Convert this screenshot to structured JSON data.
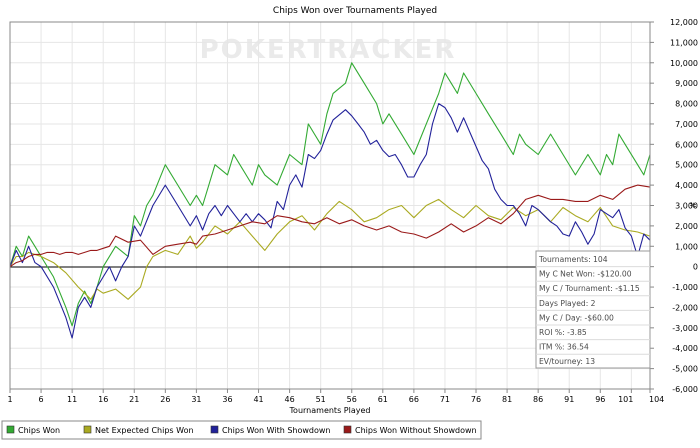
{
  "watermark": "POKERTRACKER",
  "chart_data": {
    "type": "line",
    "title": "Chips Won over Tournaments Played",
    "xlabel": "Tournaments Played",
    "ylabel": "#",
    "xlim": [
      1,
      104
    ],
    "ylim": [
      -6000,
      12000
    ],
    "xticks": [
      1,
      6,
      11,
      16,
      21,
      26,
      31,
      36,
      41,
      46,
      51,
      56,
      61,
      66,
      71,
      76,
      81,
      86,
      91,
      96,
      101,
      104
    ],
    "yticks": [
      -6000,
      -5000,
      -4000,
      -3000,
      -2000,
      -1000,
      0,
      1000,
      2000,
      3000,
      4000,
      5000,
      6000,
      7000,
      8000,
      9000,
      10000,
      11000,
      12000
    ],
    "ytick_labels": [
      "-6,000",
      "-5,000",
      "-4,000",
      "-3,000",
      "-2,000",
      "-1,000",
      "0",
      "1,000",
      "2,000",
      "3,000",
      "4,000",
      "5,000",
      "6,000",
      "7,000",
      "8,000",
      "9,000",
      "10,000",
      "11,000",
      "12,000"
    ],
    "grid": true,
    "legend_position": "bottom",
    "series": [
      {
        "name": "Chips Won",
        "color": "#33aa33",
        "x": [
          1,
          2,
          3,
          4,
          5,
          6,
          8,
          10,
          11,
          12,
          13,
          14,
          15,
          16,
          18,
          20,
          21,
          22,
          23,
          24,
          26,
          28,
          30,
          31,
          32,
          33,
          34,
          36,
          37,
          38,
          39,
          40,
          41,
          42,
          44,
          46,
          48,
          49,
          50,
          51,
          52,
          53,
          55,
          56,
          58,
          60,
          61,
          62,
          64,
          66,
          68,
          70,
          71,
          72,
          73,
          74,
          76,
          78,
          80,
          82,
          83,
          84,
          86,
          88,
          90,
          92,
          94,
          96,
          97,
          98,
          99,
          100,
          102,
          103,
          104
        ],
        "values": [
          0,
          1000,
          500,
          1500,
          1000,
          500,
          -500,
          -2000,
          -2900,
          -1800,
          -1200,
          -1800,
          -1000,
          0,
          1000,
          500,
          2500,
          2000,
          3000,
          3500,
          5000,
          4000,
          3000,
          3500,
          3000,
          4000,
          5000,
          4500,
          5500,
          5000,
          4500,
          4000,
          5000,
          4500,
          4000,
          5500,
          5000,
          7000,
          6500,
          6000,
          7500,
          8500,
          9000,
          10000,
          9000,
          8000,
          7000,
          7500,
          6500,
          5500,
          7000,
          8500,
          9500,
          9000,
          8500,
          9500,
          8500,
          7500,
          6500,
          5500,
          6500,
          6000,
          5500,
          6500,
          5500,
          4500,
          5500,
          4500,
          5500,
          5000,
          6500,
          6000,
          5000,
          4500,
          5500
        ]
      },
      {
        "name": "Net Expected Chips Won",
        "color": "#aaaa22",
        "x": [
          1,
          2,
          3,
          4,
          6,
          8,
          10,
          12,
          13,
          14,
          15,
          16,
          18,
          20,
          21,
          22,
          23,
          24,
          26,
          28,
          30,
          31,
          32,
          34,
          36,
          38,
          40,
          42,
          44,
          46,
          48,
          50,
          52,
          54,
          56,
          58,
          60,
          62,
          64,
          66,
          68,
          70,
          72,
          74,
          76,
          78,
          80,
          82,
          84,
          86,
          88,
          90,
          92,
          94,
          96,
          98,
          100,
          102,
          104
        ],
        "values": [
          0,
          500,
          500,
          700,
          500,
          200,
          -300,
          -1000,
          -1300,
          -1600,
          -1100,
          -1300,
          -1100,
          -1600,
          -1300,
          -1000,
          0,
          500,
          800,
          600,
          1500,
          900,
          1200,
          2000,
          1600,
          2200,
          1500,
          800,
          1600,
          2200,
          2500,
          1800,
          2600,
          3200,
          2800,
          2200,
          2400,
          2800,
          3000,
          2400,
          3000,
          3300,
          2800,
          2400,
          3000,
          2500,
          2300,
          2900,
          2500,
          2800,
          2200,
          2900,
          2500,
          2200,
          2900,
          2000,
          1800,
          1700,
          1500
        ]
      },
      {
        "name": "Chips Won With Showdown",
        "color": "#22229a",
        "x": [
          1,
          2,
          3,
          4,
          5,
          6,
          8,
          10,
          11,
          12,
          13,
          14,
          15,
          16,
          17,
          18,
          19,
          20,
          21,
          22,
          24,
          26,
          28,
          30,
          31,
          32,
          33,
          34,
          35,
          36,
          37,
          38,
          39,
          40,
          41,
          42,
          43,
          44,
          45,
          46,
          47,
          48,
          49,
          50,
          51,
          52,
          53,
          55,
          56,
          57,
          58,
          59,
          60,
          61,
          62,
          63,
          64,
          65,
          66,
          67,
          68,
          69,
          70,
          71,
          72,
          73,
          74,
          75,
          76,
          77,
          78,
          79,
          80,
          81,
          82,
          83,
          84,
          85,
          86,
          87,
          88,
          89,
          90,
          91,
          92,
          93,
          94,
          95,
          96,
          97,
          98,
          99,
          100,
          101,
          102,
          103,
          104
        ],
        "values": [
          0,
          800,
          200,
          1000,
          200,
          0,
          -1000,
          -2500,
          -3500,
          -2000,
          -1500,
          -2000,
          -1000,
          -500,
          0,
          -700,
          0,
          500,
          2000,
          1500,
          3000,
          4000,
          3000,
          2000,
          2500,
          1800,
          2600,
          3000,
          2500,
          3000,
          2600,
          2200,
          2600,
          2200,
          2600,
          2300,
          1900,
          3200,
          2800,
          4000,
          4500,
          3900,
          5500,
          5300,
          5700,
          6500,
          7200,
          7700,
          7400,
          7000,
          6600,
          6000,
          6200,
          5700,
          5400,
          5500,
          5000,
          4400,
          4400,
          5000,
          5500,
          7000,
          8000,
          7800,
          7300,
          6600,
          7300,
          6600,
          5900,
          5200,
          4800,
          3800,
          3300,
          3000,
          3000,
          2600,
          2000,
          3000,
          2800,
          2500,
          2200,
          2000,
          1600,
          1500,
          2200,
          1700,
          1100,
          1600,
          2800,
          2600,
          2400,
          2800,
          1900,
          1500,
          500,
          1600,
          1300
        ]
      },
      {
        "name": "Chips Won Without Showdown",
        "color": "#9a1a1a",
        "x": [
          1,
          2,
          3,
          4,
          5,
          6,
          7,
          8,
          9,
          10,
          11,
          12,
          13,
          14,
          15,
          16,
          17,
          18,
          20,
          22,
          24,
          26,
          28,
          30,
          31,
          32,
          34,
          36,
          38,
          40,
          42,
          44,
          46,
          48,
          50,
          52,
          54,
          56,
          58,
          60,
          62,
          64,
          66,
          68,
          70,
          72,
          74,
          76,
          78,
          80,
          82,
          84,
          86,
          88,
          90,
          92,
          94,
          96,
          98,
          100,
          102,
          104
        ],
        "values": [
          0,
          200,
          300,
          500,
          600,
          600,
          700,
          700,
          600,
          700,
          700,
          600,
          700,
          800,
          800,
          900,
          1000,
          1500,
          1200,
          1300,
          600,
          1000,
          1100,
          1200,
          1100,
          1500,
          1600,
          1800,
          2000,
          2200,
          2100,
          2500,
          2400,
          2200,
          2100,
          2400,
          2100,
          2300,
          2000,
          1800,
          2000,
          1700,
          1600,
          1400,
          1700,
          2100,
          1700,
          2000,
          2400,
          2100,
          2600,
          3300,
          3500,
          3300,
          3300,
          3200,
          3200,
          3500,
          3300,
          3800,
          4000,
          3900
        ]
      }
    ]
  },
  "stats_box": {
    "lines": [
      "Tournaments: 104",
      "My C Net Won: -$120.00",
      "My C / Tournament: -$1.15",
      "Days Played: 2",
      "My C / Day: -$60.00",
      "ROI %: -3.85",
      "ITM %: 36.54",
      "EV/tourney: 13"
    ]
  }
}
